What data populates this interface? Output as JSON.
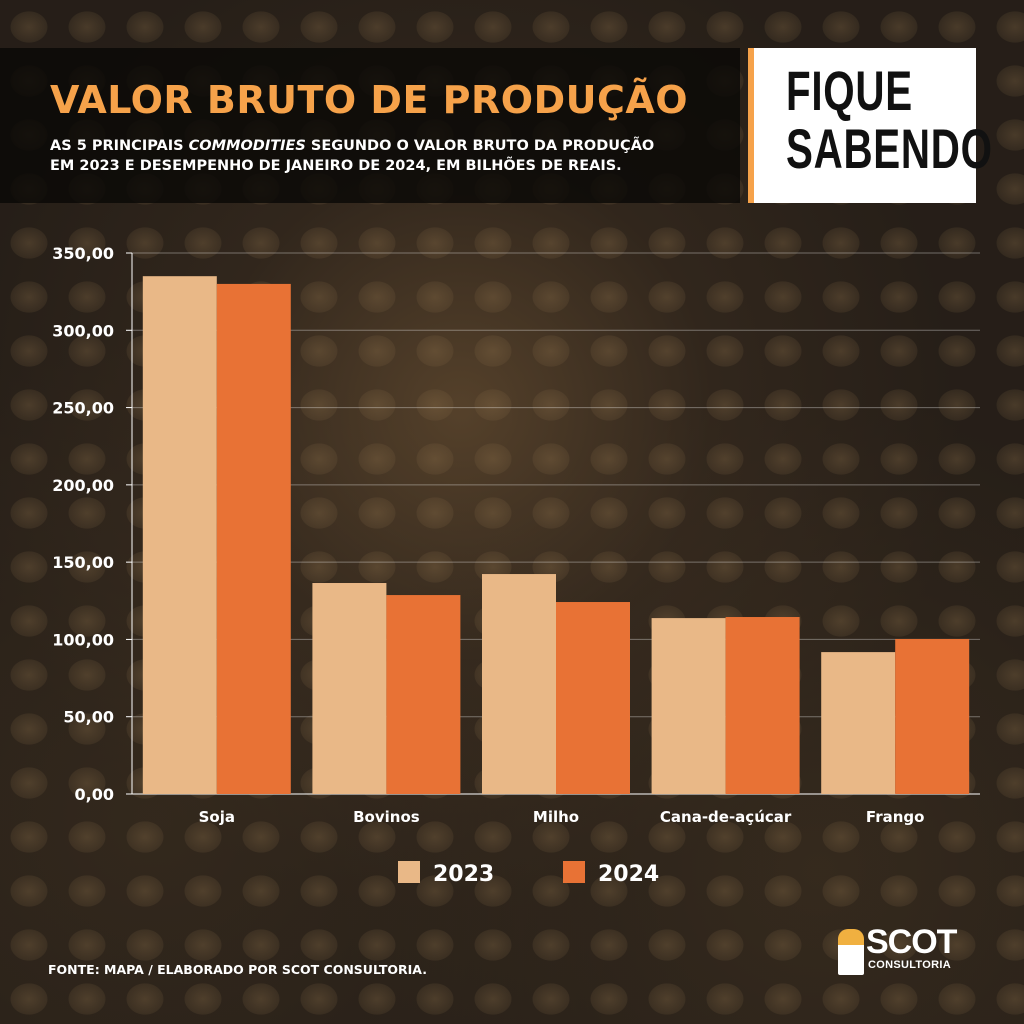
{
  "header": {
    "title": "VALOR BRUTO DE PRODUÇÃO",
    "subtitle_line1_pre": "AS 5 PRINCIPAIS ",
    "subtitle_line1_em": "COMMODITIES",
    "subtitle_line1_post": " SEGUNDO O VALOR BRUTO DA PRODUÇÃO",
    "subtitle_line2": "EM 2023 E DESEMPENHO DE JANEIRO DE 2024, EM BILHÕES DE REAIS.",
    "badge_line1": "FIQUE",
    "badge_line2": "SABENDO"
  },
  "footer": {
    "source": "FONTE: MAPA / ELABORADO POR SCOT CONSULTORIA.",
    "logo_main": "SCOT",
    "logo_sub": "CONSULTORIA"
  },
  "colors": {
    "accent": "#f6a24a",
    "c2023": "#e9b887",
    "c2024": "#e87235"
  },
  "chart_data": {
    "type": "bar",
    "categories": [
      "Soja",
      "Bovinos",
      "Milho",
      "Cana-de-açúcar",
      "Frango"
    ],
    "series": [
      {
        "name": "2023",
        "values": [
          335,
          136.5,
          142.3,
          113.8,
          91.8
        ]
      },
      {
        "name": "2024",
        "values": [
          330,
          128.7,
          124.2,
          114.5,
          100.3
        ]
      }
    ],
    "yticks": [
      "0,00",
      "50,00",
      "100,00",
      "150,00",
      "200,00",
      "250,00",
      "300,00",
      "350,00"
    ],
    "ylim": [
      0,
      350
    ],
    "grid": true,
    "legend": "bottom"
  }
}
